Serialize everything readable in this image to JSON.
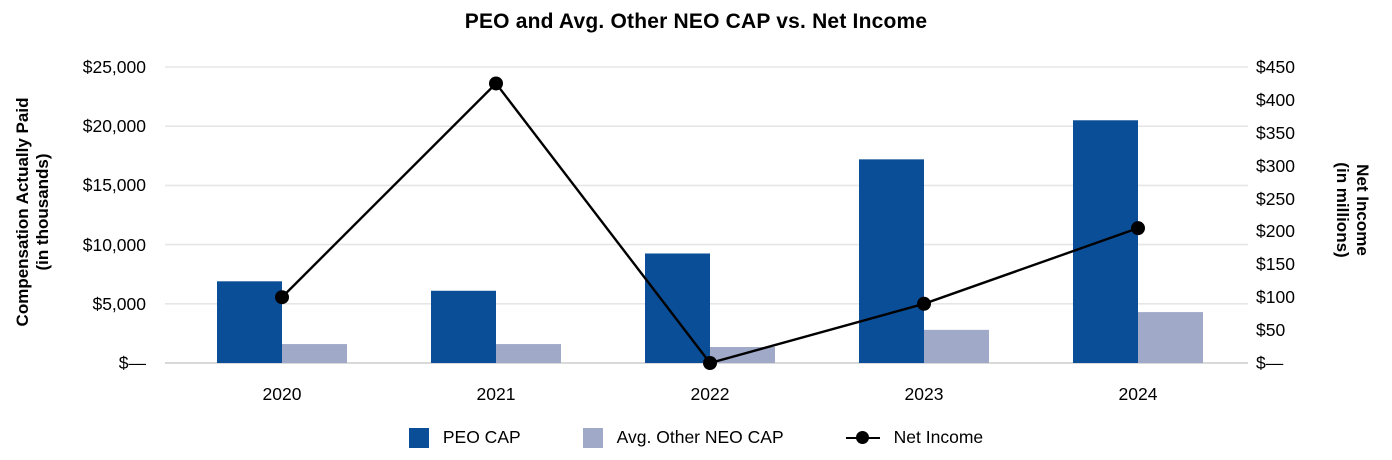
{
  "title": "PEO and Avg. Other NEO CAP vs. Net Income",
  "left_axis": {
    "title_line1": "Compensation Actually Paid",
    "title_line2": "(in thousands)",
    "tick_labels": [
      "$—",
      "$5,000",
      "$10,000",
      "$15,000",
      "$20,000",
      "$25,000"
    ],
    "tick_values": [
      0,
      5000,
      10000,
      15000,
      20000,
      25000
    ],
    "range": [
      0,
      25000
    ]
  },
  "right_axis": {
    "title_line1": "Net Income",
    "title_line2": "(in millions)",
    "tick_labels": [
      "$—",
      "$50",
      "$100",
      "$150",
      "$200",
      "$250",
      "$300",
      "$350",
      "$400",
      "$450"
    ],
    "tick_values": [
      0,
      50,
      100,
      150,
      200,
      250,
      300,
      350,
      400,
      450
    ],
    "range": [
      0,
      450
    ]
  },
  "chart_data": {
    "type": "bar",
    "subtype": "grouped-bars-with-line-overlay",
    "title": "PEO and Avg. Other NEO CAP vs. Net Income",
    "categories": [
      "2020",
      "2021",
      "2022",
      "2023",
      "2024"
    ],
    "series": [
      {
        "name": "PEO CAP",
        "type": "bar",
        "axis": "left",
        "color": "#0B4E98",
        "values": [
          6900,
          6100,
          9250,
          17200,
          20500
        ]
      },
      {
        "name": "Avg. Other NEO CAP",
        "type": "bar",
        "axis": "left",
        "color": "#A0AAC8",
        "values": [
          1600,
          1600,
          1350,
          2800,
          4300
        ]
      },
      {
        "name": "Net Income",
        "type": "line",
        "axis": "right",
        "color": "#000000",
        "values": [
          100,
          425,
          0,
          90,
          205
        ]
      }
    ],
    "left_ylim": [
      0,
      25000
    ],
    "right_ylim": [
      0,
      450
    ],
    "grid": "horizontal",
    "legend_position": "bottom"
  },
  "colors": {
    "peo_bar": "#0B4E98",
    "neo_bar": "#A0AAC8",
    "net_income_line": "#000000",
    "gridline": "#E6E6E6",
    "axis_line": "#D9D9D9",
    "text": "#000000"
  }
}
